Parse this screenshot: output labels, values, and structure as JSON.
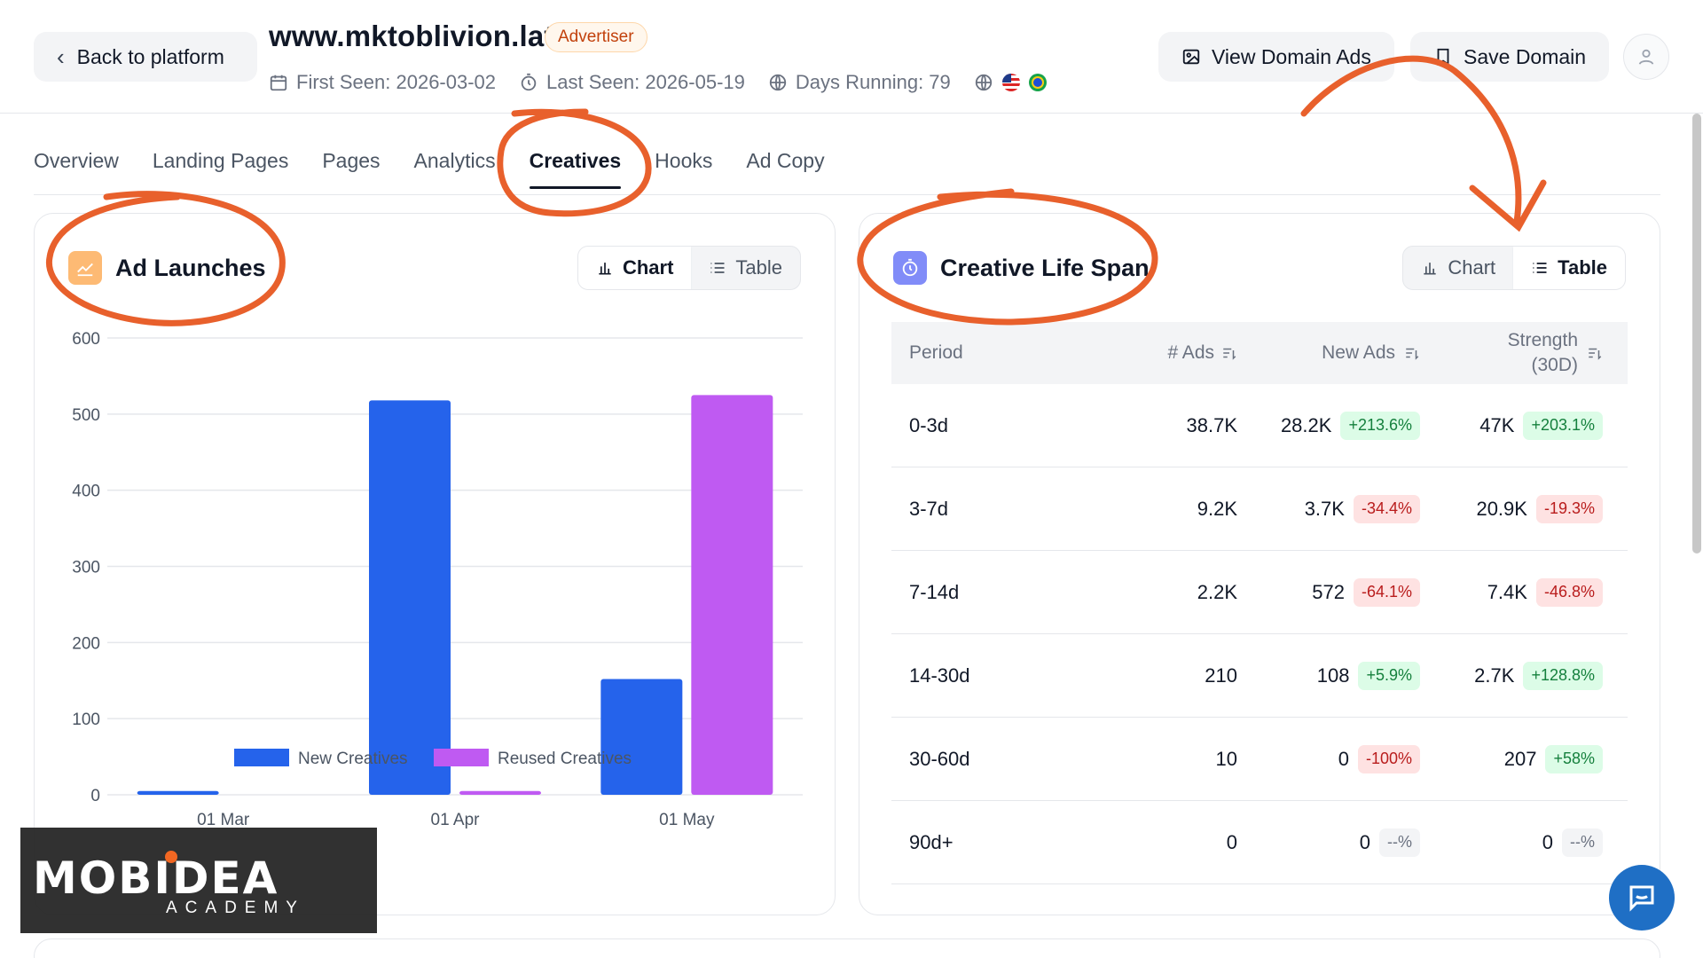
{
  "header": {
    "back_label": "Back to platform",
    "domain": "www.mktoblivion.lat",
    "badge": "Advertiser",
    "first_seen": "First Seen: 2026-03-02",
    "last_seen": "Last Seen: 2026-05-19",
    "days_running": "Days Running: 79",
    "view_ads_label": "View Domain Ads",
    "save_label": "Save Domain"
  },
  "tabs": [
    "Overview",
    "Landing Pages",
    "Pages",
    "Analytics",
    "Creatives",
    "Hooks",
    "Ad Copy"
  ],
  "active_tab": "Creatives",
  "ad_launches": {
    "title": "Ad Launches",
    "toggle": {
      "chart": "Chart",
      "table": "Table",
      "selected": "Chart"
    }
  },
  "life_span": {
    "title": "Creative Life Span",
    "toggle": {
      "chart": "Chart",
      "table": "Table",
      "selected": "Table"
    },
    "columns": {
      "period": "Period",
      "ads": "# Ads",
      "new_ads": "New Ads",
      "strength_1": "Strength",
      "strength_2": "(30D)"
    },
    "rows": [
      {
        "period": "0-3d",
        "ads": "38.7K",
        "new_ads": "28.2K",
        "new_change": "+213.6%",
        "new_dir": "up",
        "strength": "47K",
        "str_change": "+203.1%",
        "str_dir": "up"
      },
      {
        "period": "3-7d",
        "ads": "9.2K",
        "new_ads": "3.7K",
        "new_change": "-34.4%",
        "new_dir": "down",
        "strength": "20.9K",
        "str_change": "-19.3%",
        "str_dir": "down"
      },
      {
        "period": "7-14d",
        "ads": "2.2K",
        "new_ads": "572",
        "new_change": "-64.1%",
        "new_dir": "down",
        "strength": "7.4K",
        "str_change": "-46.8%",
        "str_dir": "down"
      },
      {
        "period": "14-30d",
        "ads": "210",
        "new_ads": "108",
        "new_change": "+5.9%",
        "new_dir": "up",
        "strength": "2.7K",
        "str_change": "+128.8%",
        "str_dir": "up"
      },
      {
        "period": "30-60d",
        "ads": "10",
        "new_ads": "0",
        "new_change": "-100%",
        "new_dir": "down",
        "strength": "207",
        "str_change": "+58%",
        "str_dir": "up"
      },
      {
        "period": "90d+",
        "ads": "0",
        "new_ads": "0",
        "new_change": "--%",
        "new_dir": "na",
        "strength": "0",
        "str_change": "--%",
        "str_dir": "na"
      }
    ]
  },
  "chart_data": {
    "type": "bar",
    "title": "Ad Launches",
    "categories": [
      "01 Mar",
      "01 Apr",
      "01 May"
    ],
    "series": [
      {
        "name": "New Creatives",
        "color": "#2563eb",
        "values": [
          5,
          518,
          152
        ]
      },
      {
        "name": "Reused Creatives",
        "color": "#bf5af2",
        "values": [
          0,
          5,
          525
        ]
      }
    ],
    "ylim": [
      0,
      600
    ],
    "yticks": [
      0,
      100,
      200,
      300,
      400,
      500,
      600
    ],
    "grid": true,
    "legend": "bottom"
  },
  "watermark": {
    "main": "MOBIDEA",
    "sub": "ACADEMY"
  },
  "colors": {
    "annotation": "#e8602c",
    "chat": "#1f6fc5"
  }
}
